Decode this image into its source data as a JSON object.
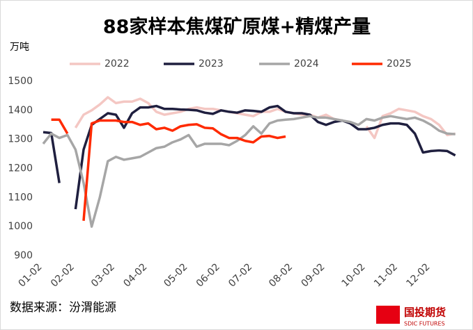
{
  "chart_data": {
    "type": "line",
    "title": "88家样本焦煤矿原煤+精煤产量",
    "y_label": "万吨",
    "source": "数据来源：汾渭能源",
    "logo": {
      "name": "国投期货",
      "sub": "SDIC FUTURES"
    },
    "categories": [
      "01-02",
      null,
      null,
      null,
      "02-02",
      null,
      null,
      null,
      null,
      "03-02",
      null,
      null,
      null,
      "04-02",
      null,
      null,
      null,
      null,
      "05-02",
      null,
      null,
      null,
      "06-02",
      null,
      null,
      null,
      "07-02",
      null,
      null,
      null,
      null,
      "08-02",
      null,
      null,
      null,
      "09-02",
      null,
      null,
      null,
      null,
      "10-02",
      null,
      null,
      null,
      "11-02",
      null,
      null,
      null,
      "12-02",
      null,
      null,
      null
    ],
    "ylim": [
      900,
      1500
    ],
    "yticks": [
      900,
      1000,
      1100,
      1200,
      1300,
      1400,
      1500
    ],
    "series": [
      {
        "name": "2022",
        "color": "#f4c7c3",
        "values": [
          null,
          null,
          null,
          null,
          1340,
          1385,
          1400,
          1420,
          1445,
          1425,
          1430,
          1430,
          1440,
          1425,
          1395,
          1385,
          1390,
          1395,
          1405,
          1410,
          1405,
          1405,
          1400,
          1395,
          1390,
          1385,
          1380,
          1395,
          1395,
          1405,
          1395,
          1390,
          1385,
          1385,
          1375,
          1385,
          1370,
          1365,
          null,
          null,
          1345,
          1305,
          1380,
          1390,
          1405,
          1400,
          1395,
          1380,
          1370,
          1350,
          1315,
          1320
        ]
      },
      {
        "name": "2023",
        "color": "#1f1f3f",
        "values": [
          1325,
          1322,
          1150,
          null,
          1060,
          1265,
          1350,
          1370,
          1390,
          1385,
          1340,
          1390,
          1410,
          1410,
          1415,
          1405,
          1405,
          1403,
          1402,
          1400,
          1392,
          1388,
          1400,
          1395,
          1392,
          1400,
          1398,
          1395,
          1410,
          1415,
          1395,
          1390,
          1390,
          1385,
          1360,
          1350,
          1360,
          1365,
          1355,
          1335,
          1335,
          1340,
          1350,
          1355,
          1355,
          1350,
          1320,
          1255,
          1260,
          1262,
          1260,
          1245
        ]
      },
      {
        "name": "2024",
        "color": "#a6a6a6",
        "values": [
          1285,
          1320,
          1305,
          1315,
          1265,
          1150,
          1000,
          1100,
          1225,
          1240,
          1230,
          1235,
          1240,
          1255,
          1270,
          1275,
          1290,
          1300,
          1315,
          1275,
          1285,
          1285,
          1285,
          1280,
          1295,
          1315,
          1345,
          1320,
          1355,
          1365,
          1368,
          1370,
          1375,
          1380,
          1375,
          1375,
          1370,
          1365,
          1360,
          1350,
          1370,
          1365,
          1375,
          1380,
          1375,
          1370,
          1375,
          1365,
          1350,
          1330,
          1320,
          1318
        ]
      },
      {
        "name": "2025",
        "color": "#ff2a00",
        "values": [
          null,
          1368,
          1368,
          1320,
          null,
          1020,
          1355,
          1365,
          1365,
          1365,
          1360,
          1360,
          1350,
          1355,
          1335,
          1340,
          1330,
          1345,
          1350,
          1352,
          1340,
          1338,
          1318,
          1305,
          1305,
          1295,
          1290,
          1310,
          1312,
          1305,
          1310,
          null,
          null,
          null,
          null,
          null,
          null,
          null,
          null,
          null,
          null,
          null,
          null,
          null,
          null,
          null,
          null,
          null,
          null,
          null,
          null,
          null
        ]
      }
    ]
  }
}
